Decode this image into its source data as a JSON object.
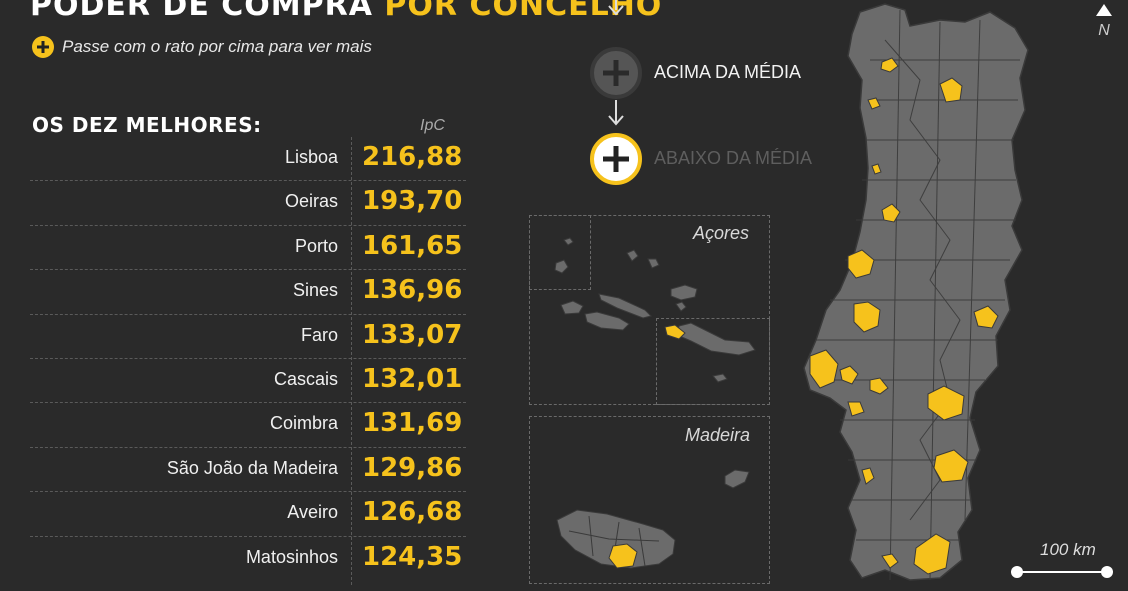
{
  "title": {
    "part1": "PODER DE COMPRA",
    "part2": "POR CONCELHO"
  },
  "hint": {
    "icon": "plus-icon",
    "text": "Passe com o rato por cima para ver mais"
  },
  "ranking": {
    "heading": "OS DEZ MELHORES:",
    "unit": "IpC",
    "rows": [
      {
        "name": "Lisboa",
        "value": "216,88"
      },
      {
        "name": "Oeiras",
        "value": "193,70"
      },
      {
        "name": "Porto",
        "value": "161,65"
      },
      {
        "name": "Sines",
        "value": "136,96"
      },
      {
        "name": "Faro",
        "value": "133,07"
      },
      {
        "name": "Cascais",
        "value": "132,01"
      },
      {
        "name": "Coimbra",
        "value": "131,69"
      },
      {
        "name": "São João da Madeira",
        "value": "129,86"
      },
      {
        "name": "Aveiro",
        "value": "126,68"
      },
      {
        "name": "Matosinhos",
        "value": "124,35"
      }
    ]
  },
  "legend": {
    "above": {
      "label": "ACIMA DA MÉDIA",
      "color": "#f6c21c"
    },
    "below": {
      "label": "ABAIXO DA MÉDIA",
      "color": "#6b6b6b"
    }
  },
  "insets": {
    "azores": "Açores",
    "madeira": "Madeira"
  },
  "north_label": "N",
  "scale_label": "100 km",
  "colors": {
    "accent": "#f6c21c",
    "background": "#2a2a2a",
    "region": "#6b6b6b"
  }
}
